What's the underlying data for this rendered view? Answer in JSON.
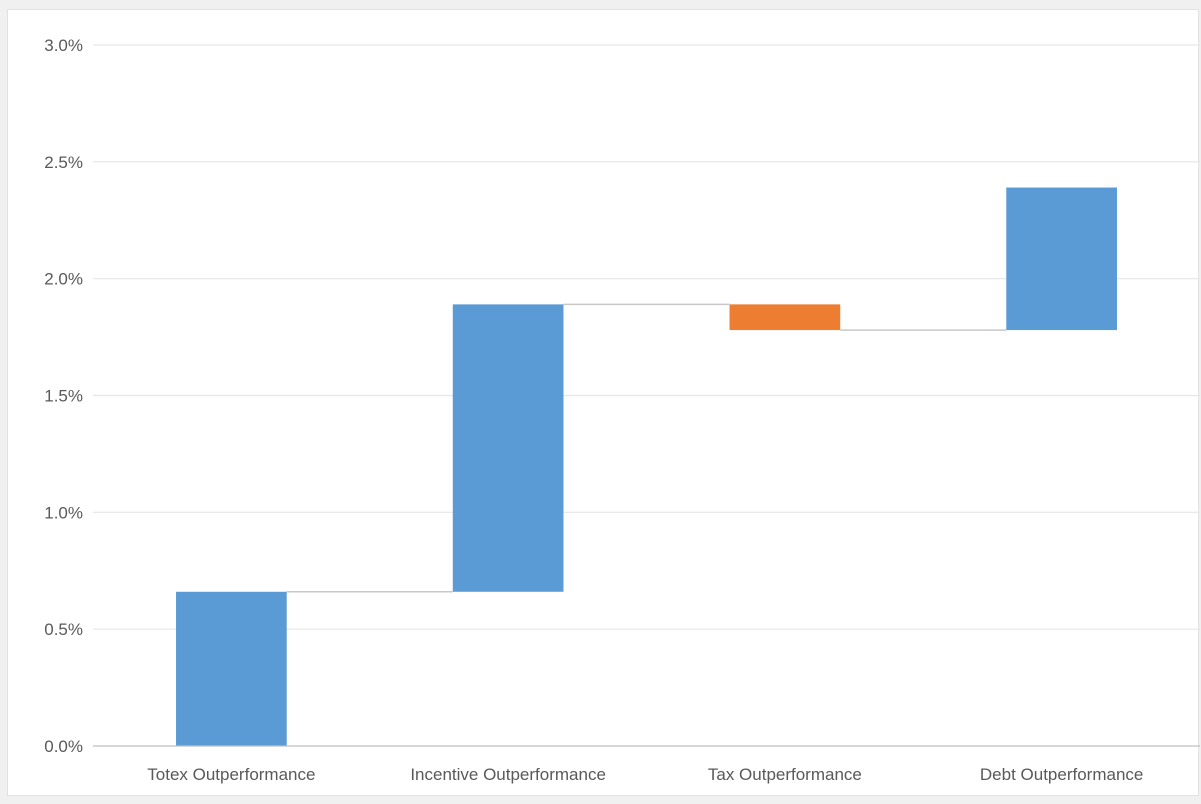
{
  "chart_data": {
    "type": "bar",
    "subtype": "waterfall",
    "categories": [
      "Totex Outperformance",
      "Incentive Outperformance",
      "Tax Outperformance",
      "Debt Outperformance"
    ],
    "series": [
      {
        "values": [
          0.66,
          1.23,
          -0.11,
          0.61
        ]
      }
    ],
    "cumulative": [
      0.66,
      1.89,
      1.78,
      2.39
    ],
    "ylim": [
      0,
      3.0
    ],
    "yticks": [
      0.0,
      0.5,
      1.0,
      1.5,
      2.0,
      2.5,
      3.0
    ],
    "ytick_labels": [
      "0.0%",
      "0.5%",
      "1.0%",
      "1.5%",
      "2.0%",
      "2.5%",
      "3.0%"
    ],
    "ylabel_format": "percent",
    "grid": true,
    "legend": "none",
    "colors": {
      "increase": "#5b9bd5",
      "decrease": "#ed7d31",
      "connector": "#c8c8c8",
      "gridline": "#e6e6e6",
      "axis": "#bfbfbf"
    }
  }
}
